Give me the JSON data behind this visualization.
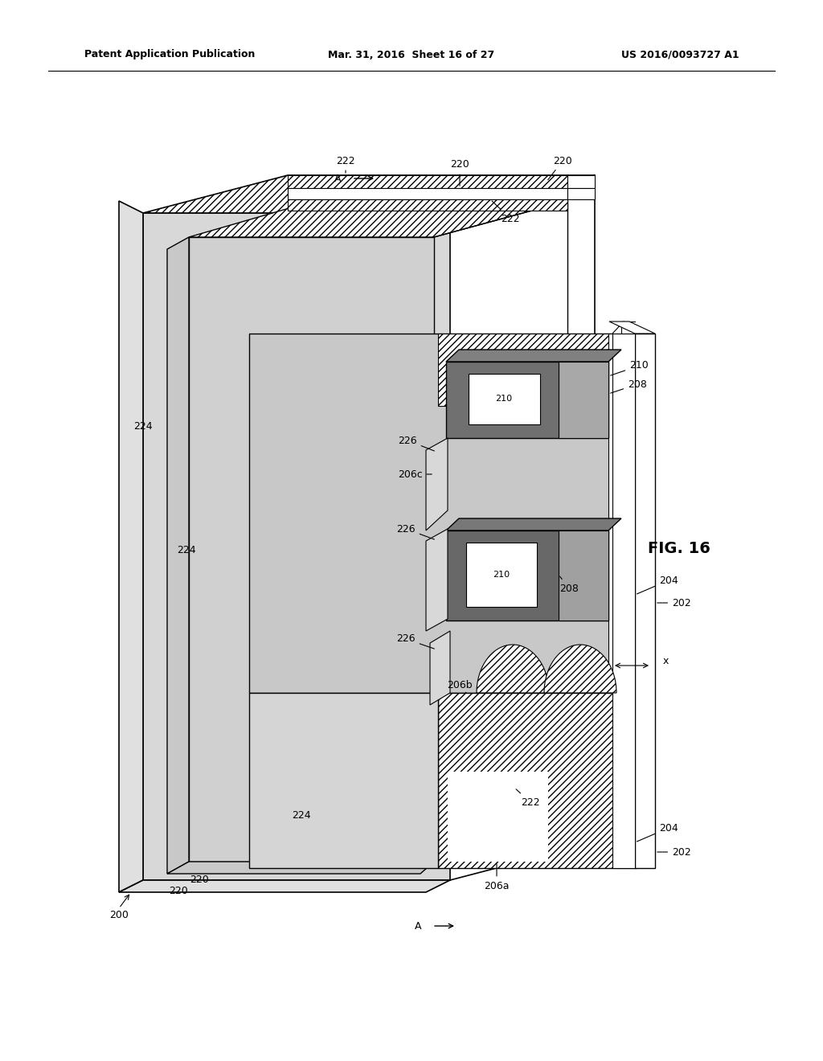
{
  "header_left": "Patent Application Publication",
  "header_mid": "Mar. 31, 2016  Sheet 16 of 27",
  "header_right": "US 2016/0093727 A1",
  "fig_label": "FIG. 16",
  "bg": "#ffffff",
  "lc": "#000000",
  "dark_gray": "#606060",
  "med_gray": "#909090",
  "light_gray": "#b8b8b8",
  "stipple": "#cccccc",
  "hatch_color": "#333333"
}
